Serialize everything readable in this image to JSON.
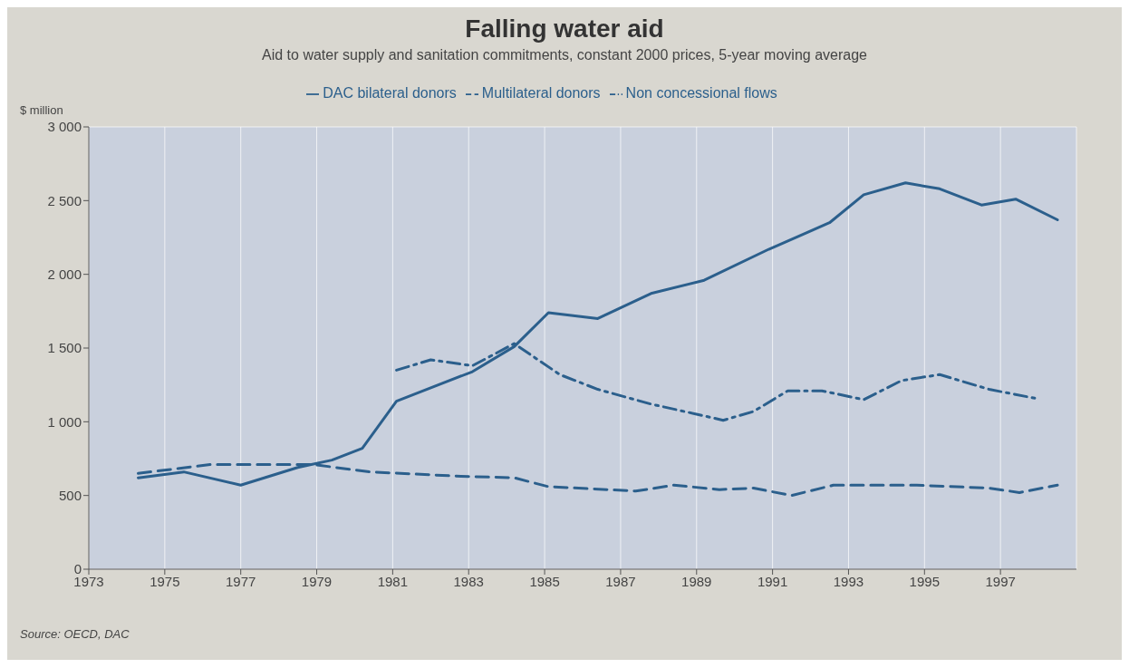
{
  "chart_data": {
    "type": "line",
    "title": "Falling water aid",
    "subtitle": "Aid to water supply and sanitation commitments, constant 2000 prices, 5-year moving average",
    "ylabel": "$ million",
    "annotations": [
      "Source: OECD, DAC"
    ],
    "xlim": [
      1973,
      1999
    ],
    "xticks": [
      1973,
      1975,
      1977,
      1979,
      1981,
      1983,
      1985,
      1987,
      1989,
      1991,
      1993,
      1995,
      1997
    ],
    "ylim": [
      0,
      3000
    ],
    "yticks": [
      0,
      {
        "value": 500,
        "label": "500"
      },
      {
        "value": 1000,
        "label": "1 000"
      },
      {
        "value": 1500,
        "label": "1 500"
      },
      {
        "value": 2000,
        "label": "2 000"
      },
      {
        "value": 2500,
        "label": "2 500"
      },
      {
        "value": 3000,
        "label": "3 000"
      }
    ],
    "grid": true,
    "legend": "top",
    "series": [
      {
        "name": "DAC bilateral donors",
        "color": "#2b5f8c",
        "line_style": "solid",
        "x": [
          1974.3,
          1975.5,
          1977.0,
          1978.5,
          1979.4,
          1980.2,
          1981.1,
          1983.1,
          1984.2,
          1985.1,
          1986.4,
          1987.8,
          1989.2,
          1990.9,
          1992.5,
          1993.4,
          1994.5,
          1995.4,
          1996.5,
          1997.4,
          1998.5
        ],
        "values": [
          620,
          660,
          570,
          690,
          740,
          820,
          1140,
          1340,
          1510,
          1740,
          1700,
          1870,
          1960,
          2170,
          2350,
          2540,
          2620,
          2580,
          2470,
          2510,
          2370
        ]
      },
      {
        "name": "Multilateral donors",
        "color": "#2b5f8c",
        "line_style": "dashed",
        "x": [
          1974.3,
          1976.2,
          1978.9,
          1980.4,
          1982.8,
          1984.2,
          1985.1,
          1987.4,
          1988.4,
          1989.6,
          1990.5,
          1991.5,
          1992.6,
          1994.8,
          1996.7,
          1997.5,
          1998.5
        ],
        "values": [
          650,
          710,
          710,
          660,
          630,
          620,
          560,
          530,
          570,
          540,
          550,
          500,
          570,
          570,
          550,
          520,
          570
        ]
      },
      {
        "name": "Non concessional flows",
        "color": "#2b5f8c",
        "line_style": "dashdot",
        "x": [
          1981.1,
          1982.0,
          1983.1,
          1984.2,
          1985.4,
          1986.4,
          1987.8,
          1989.2,
          1989.7,
          1990.5,
          1991.4,
          1992.3,
          1993.4,
          1994.4,
          1995.4,
          1996.7,
          1997.9
        ],
        "values": [
          1350,
          1420,
          1380,
          1530,
          1320,
          1220,
          1120,
          1040,
          1010,
          1070,
          1210,
          1210,
          1150,
          1280,
          1320,
          1220,
          1160
        ]
      }
    ]
  }
}
